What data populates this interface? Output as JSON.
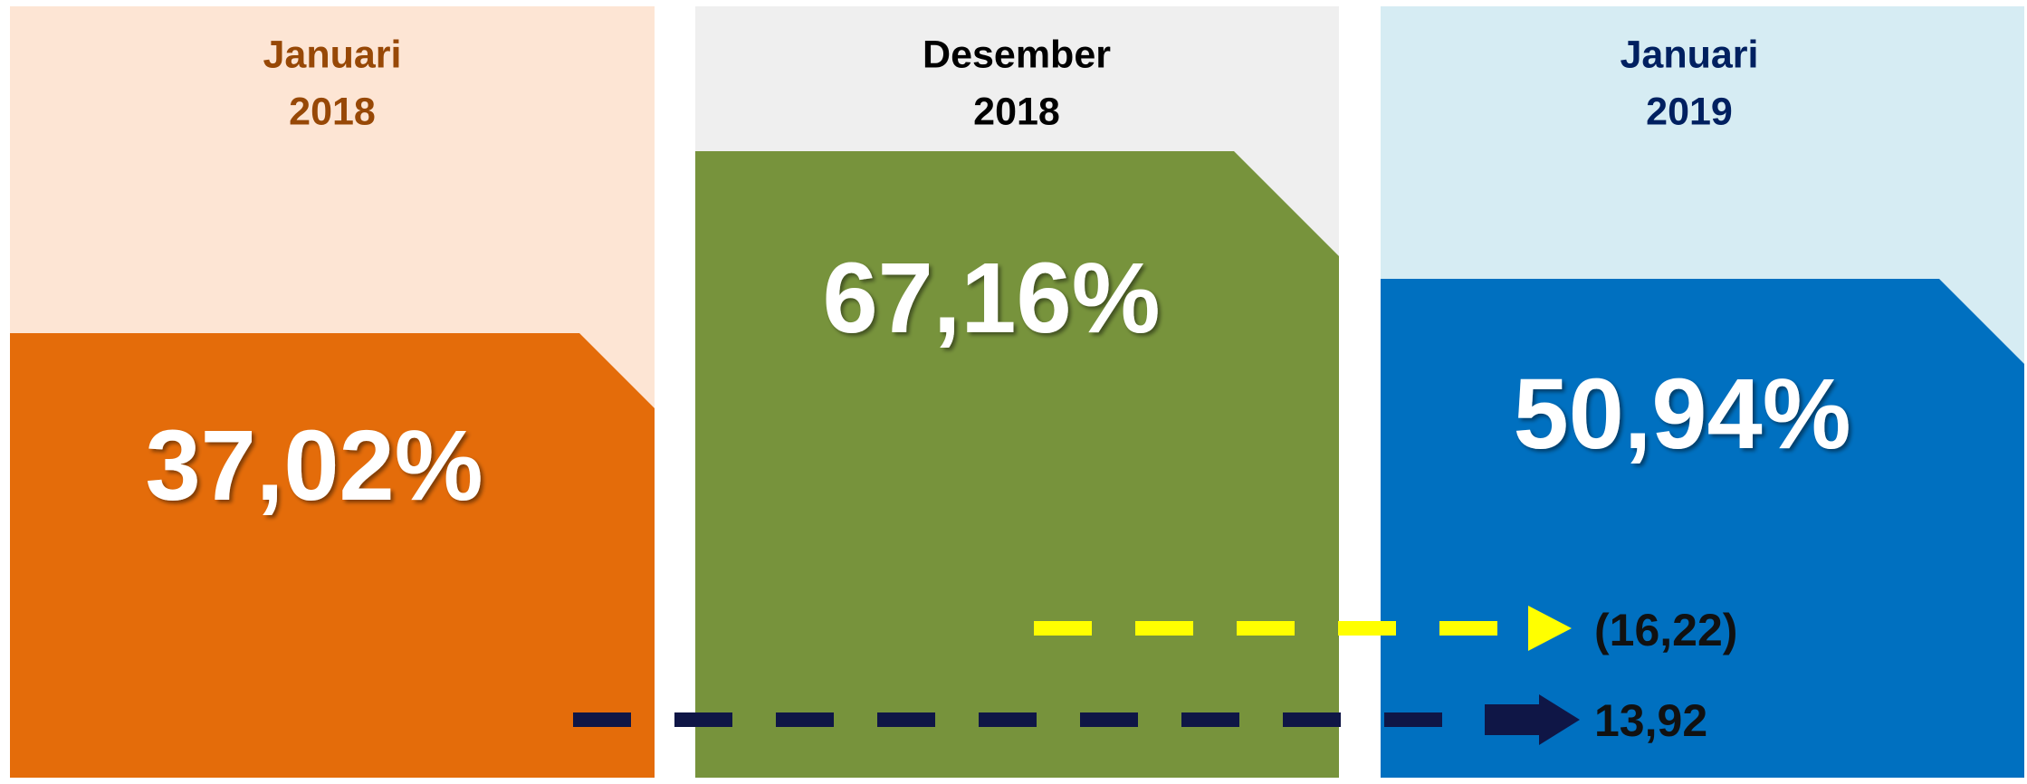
{
  "panels": [
    {
      "title_line1": "Januari",
      "title_line2": "2018",
      "value": "37,02%"
    },
    {
      "title_line1": "Desember",
      "title_line2": "2018",
      "value": "67,16%"
    },
    {
      "title_line1": "Januari",
      "title_line2": "2019",
      "value": "50,94%"
    }
  ],
  "changes": [
    {
      "label": "(16,22)"
    },
    {
      "label": "13,92"
    }
  ]
}
